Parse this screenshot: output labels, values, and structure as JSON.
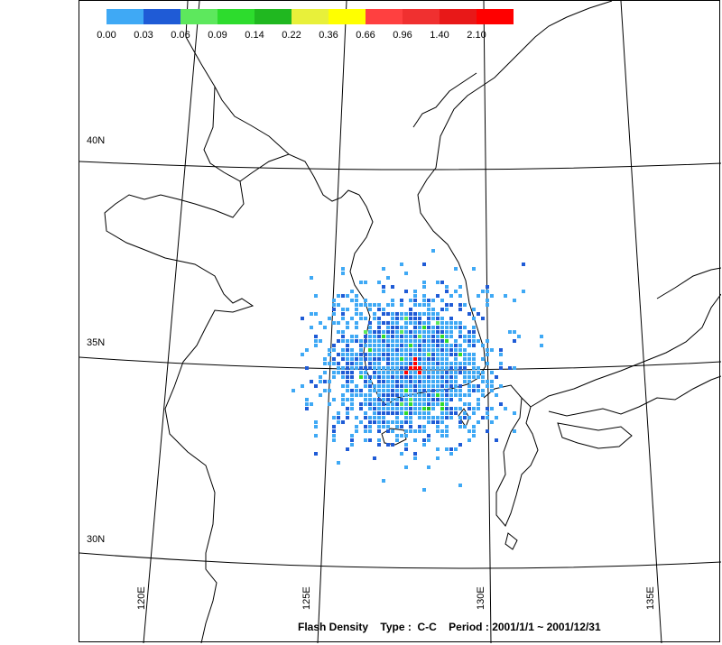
{
  "legend": {
    "bins": [
      {
        "label": "0.00",
        "color": "#3fa9f5"
      },
      {
        "label": "0.03",
        "color": "#1f5bd6"
      },
      {
        "label": "0.06",
        "color": "#5de85d"
      },
      {
        "label": "0.09",
        "color": "#2ddc2d"
      },
      {
        "label": "0.14",
        "color": "#20b820"
      },
      {
        "label": "0.22",
        "color": "#e8f03a"
      },
      {
        "label": "0.36",
        "color": "#ffff00"
      },
      {
        "label": "0.66",
        "color": "#ff4040"
      },
      {
        "label": "0.96",
        "color": "#f03030"
      },
      {
        "label": "1.40",
        "color": "#e81818"
      },
      {
        "label": "2.10",
        "color": "#ff0000"
      }
    ]
  },
  "axes": {
    "latitude_labels": [
      "40N",
      "35N",
      "30N"
    ],
    "longitude_labels": [
      "120E",
      "125E",
      "130E",
      "135E"
    ]
  },
  "caption": {
    "product": "Flash Density",
    "type_label": "Type :",
    "type_value": "C-C",
    "period_label": "Period :",
    "period_value": "2001/1/1 ~ 2001/12/31"
  },
  "chart_data": {
    "type": "heatmap",
    "variable": "Flash Density",
    "flash_type": "C-C",
    "period": "2001/1/1 ~ 2001/12/31",
    "legend_breaks": [
      0.0,
      0.03,
      0.06,
      0.09,
      0.14,
      0.22,
      0.36,
      0.66,
      0.96,
      1.4,
      2.1
    ],
    "lat_gridlines": [
      30,
      35,
      40
    ],
    "lon_gridlines": [
      120,
      125,
      130,
      135
    ],
    "hotspot": {
      "lat": 34.9,
      "lon": 127.7,
      "density_class": "2.10"
    }
  }
}
